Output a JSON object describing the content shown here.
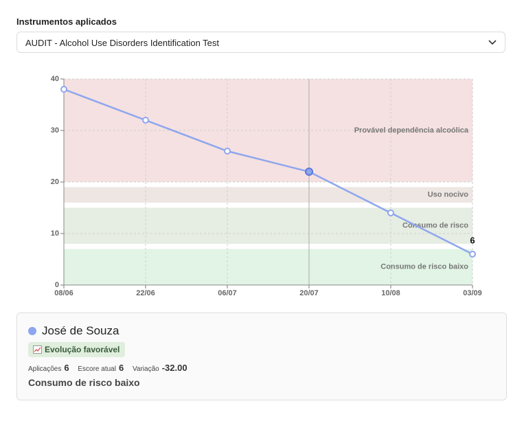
{
  "header": {
    "label": "Instrumentos aplicados",
    "select": "AUDIT - Alcohol Use Disorders Identification Test"
  },
  "chart_data": {
    "type": "line",
    "categories": [
      "08/06",
      "22/06",
      "06/07",
      "20/07",
      "10/08",
      "03/09"
    ],
    "series": [
      {
        "name": "José de Souza",
        "color": "#8ea6ee",
        "values": [
          38,
          32,
          26,
          22,
          14,
          6
        ]
      }
    ],
    "ylim": [
      0,
      40
    ],
    "yticks": [
      0,
      10,
      20,
      30,
      40
    ],
    "grid": true,
    "bands": [
      {
        "label": "Provável dependência alcoólica",
        "from": 20,
        "to": 40,
        "color": "#f5e1e1"
      },
      {
        "label": "Uso nocivo",
        "from": 16,
        "to": 19,
        "color": "#ede6e2"
      },
      {
        "label": "Consumo de risco",
        "from": 8,
        "to": 15,
        "color": "#e6ede3"
      },
      {
        "label": "Consumo de risco baixo",
        "from": 0,
        "to": 7,
        "color": "#e1f4e5"
      }
    ]
  },
  "summary": {
    "badge": "Evolução favorável",
    "stats": [
      {
        "label": "Aplicações",
        "value": "6"
      },
      {
        "label": "Escore atual",
        "value": "6"
      },
      {
        "label": "Variação",
        "value": "-32.00"
      }
    ],
    "status": "Consumo de risco baixo"
  }
}
